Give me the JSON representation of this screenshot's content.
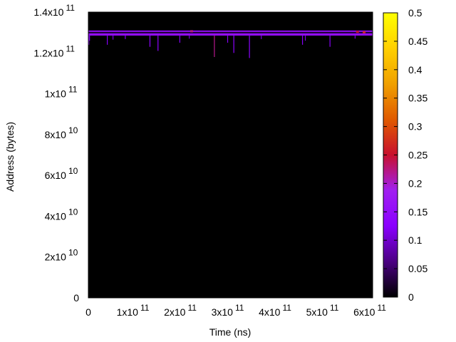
{
  "chart_data": {
    "type": "heatmap",
    "title": "",
    "xlabel": "Time (ns)",
    "ylabel": "Address (bytes)",
    "xlim": [
      0,
      600000000000
    ],
    "ylim": [
      0,
      140000000000
    ],
    "x_ticks": [
      {
        "value": 0,
        "mantissa": "0",
        "exp": ""
      },
      {
        "value": 100000000000,
        "mantissa": "1x10",
        "exp": "11"
      },
      {
        "value": 200000000000,
        "mantissa": "2x10",
        "exp": "11"
      },
      {
        "value": 300000000000,
        "mantissa": "3x10",
        "exp": "11"
      },
      {
        "value": 400000000000,
        "mantissa": "4x10",
        "exp": "11"
      },
      {
        "value": 500000000000,
        "mantissa": "5x10",
        "exp": "11"
      },
      {
        "value": 600000000000,
        "mantissa": "6x10",
        "exp": "11"
      }
    ],
    "y_ticks": [
      {
        "value": 0,
        "mantissa": "0",
        "exp": ""
      },
      {
        "value": 20000000000,
        "mantissa": "2x10",
        "exp": "10"
      },
      {
        "value": 40000000000,
        "mantissa": "4x10",
        "exp": "10"
      },
      {
        "value": 60000000000,
        "mantissa": "6x10",
        "exp": "10"
      },
      {
        "value": 80000000000,
        "mantissa": "8x10",
        "exp": "10"
      },
      {
        "value": 100000000000,
        "mantissa": "1x10",
        "exp": "11"
      },
      {
        "value": 120000000000,
        "mantissa": "1.2x10",
        "exp": "11"
      },
      {
        "value": 140000000000,
        "mantissa": "1.4x10",
        "exp": "11"
      }
    ],
    "colorbar": {
      "range": [
        0,
        0.5
      ],
      "ticks": [
        "0",
        "0.05",
        "0.1",
        "0.15",
        "0.2",
        "0.25",
        "0.3",
        "0.35",
        "0.4",
        "0.45",
        "0.5"
      ],
      "palette": [
        "#000000",
        "#4b0082",
        "#8a00ff",
        "#a020f0",
        "#c8102e",
        "#e05a00",
        "#f0a000",
        "#ffd000",
        "#ffff00"
      ]
    },
    "background_value": 0,
    "band": {
      "y_range": [
        128500000000,
        131000000000
      ],
      "value": 0.15,
      "top_value": 0.02
    },
    "spikes": [
      {
        "x": 1000000000,
        "y_bottom": 124000000000,
        "value": 0.13
      },
      {
        "x": 2500000000,
        "y_bottom": 126000000000,
        "value": 0.12
      },
      {
        "x": 40000000000,
        "y_bottom": 124000000000,
        "value": 0.12
      },
      {
        "x": 52000000000,
        "y_bottom": 126500000000,
        "value": 0.11
      },
      {
        "x": 78000000000,
        "y_bottom": 126800000000,
        "value": 0.12
      },
      {
        "x": 130000000000,
        "y_bottom": 123000000000,
        "value": 0.13
      },
      {
        "x": 147000000000,
        "y_bottom": 121000000000,
        "value": 0.13
      },
      {
        "x": 193000000000,
        "y_bottom": 125000000000,
        "value": 0.12
      },
      {
        "x": 213000000000,
        "y_bottom": 127000000000,
        "value": 0.11
      },
      {
        "x": 266000000000,
        "y_bottom": 118000000000,
        "value": 0.22
      },
      {
        "x": 294000000000,
        "y_bottom": 125000000000,
        "value": 0.12
      },
      {
        "x": 307000000000,
        "y_bottom": 120000000000,
        "value": 0.13
      },
      {
        "x": 340000000000,
        "y_bottom": 117500000000,
        "value": 0.13
      },
      {
        "x": 365000000000,
        "y_bottom": 126800000000,
        "value": 0.11
      },
      {
        "x": 452000000000,
        "y_bottom": 124000000000,
        "value": 0.12
      },
      {
        "x": 458000000000,
        "y_bottom": 126000000000,
        "value": 0.11
      },
      {
        "x": 510000000000,
        "y_bottom": 123000000000,
        "value": 0.12
      },
      {
        "x": 563000000000,
        "y_bottom": 127000000000,
        "value": 0.11
      }
    ],
    "hot_spots": [
      {
        "x": 218000000000,
        "y": 130800000000,
        "value": 0.22
      },
      {
        "x": 568000000000,
        "y": 130500000000,
        "value": 0.25
      },
      {
        "x": 582000000000,
        "y": 130300000000,
        "value": 0.27
      }
    ],
    "grid": false,
    "legend": "colorbar-right"
  }
}
